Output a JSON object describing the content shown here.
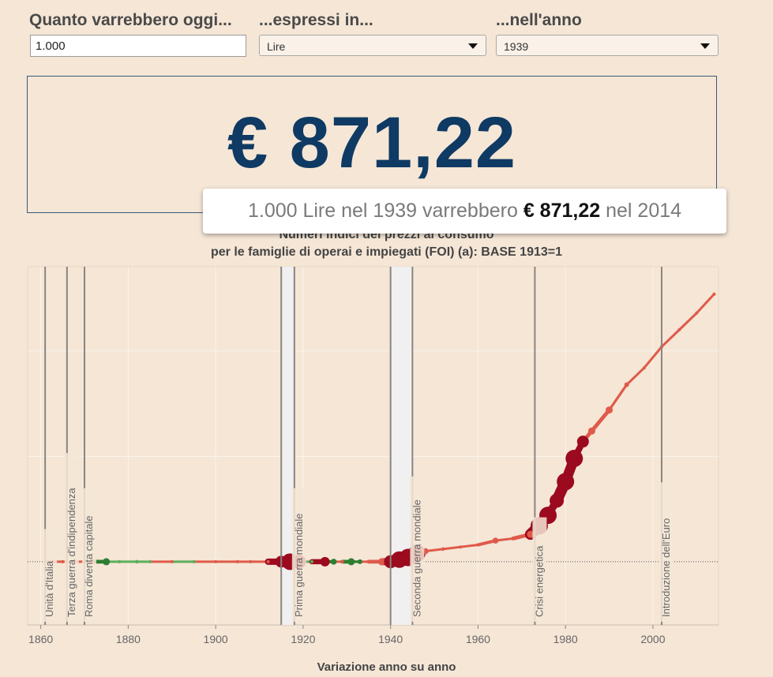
{
  "controls": {
    "amount_label": "Quanto varrebbero oggi...",
    "amount_value": "1.000",
    "currency_label": "...espressi in...",
    "currency_selected": "Lire",
    "year_label": "...nell'anno",
    "year_selected": "1939"
  },
  "result": {
    "value": "€ 871,22"
  },
  "tooltip": {
    "part1": "1.000 Lire nel 1939 varrebbero ",
    "value": "€ 871,22",
    "part2": " nel 2014"
  },
  "chart_data": {
    "type": "line",
    "title": "Numeri indici dei prezzi al consumo",
    "subtitle": "per le famiglie di operai e impiegati (FOI) (a): BASE 1913=1",
    "xlabel": "Variazione anno su anno",
    "xlim": [
      1857,
      2015
    ],
    "x_ticks": [
      1860,
      1880,
      1900,
      1920,
      1940,
      1960,
      1980,
      2000
    ],
    "ylim": [
      -0.3,
      1.4
    ],
    "grid": true,
    "colors": {
      "increase_strong": "#9b0a1e",
      "increase": "#e05a4a",
      "decrease": "#5cae5c",
      "decrease_strong": "#2e7d32",
      "event_band": "#f0f0f0",
      "event_line": "#8a8580"
    },
    "events": [
      {
        "label": "Unità d'Italia",
        "year": 1861
      },
      {
        "label": "Terza guerra d'indipendenza",
        "year": 1866
      },
      {
        "label": "Roma diventa capitale",
        "year": 1870
      },
      {
        "label": "Prima guerra mondiale",
        "start": 1915,
        "end": 1918
      },
      {
        "label": "Seconda guerra mondiale",
        "start": 1940,
        "end": 1945
      },
      {
        "label": "Crisi energetica",
        "year": 1973
      },
      {
        "label": "Introduzione dell'Euro",
        "year": 2002
      }
    ],
    "series": [
      {
        "points": [
          {
            "x": 1861,
            "y": 0.0,
            "change": -0.5
          },
          {
            "x": 1865,
            "y": 0.0,
            "change": 0.5
          },
          {
            "x": 1870,
            "y": 0.0,
            "change": 1.0
          },
          {
            "x": 1872,
            "y": 0.0,
            "change": 2.0
          },
          {
            "x": 1875,
            "y": 0.0,
            "change": -6.0
          },
          {
            "x": 1878,
            "y": 0.0,
            "change": -1.5
          },
          {
            "x": 1882,
            "y": 0.0,
            "change": -3.0
          },
          {
            "x": 1885,
            "y": 0.0,
            "change": -1.5
          },
          {
            "x": 1890,
            "y": 0.0,
            "change": 0.5
          },
          {
            "x": 1895,
            "y": 0.0,
            "change": -1.0
          },
          {
            "x": 1900,
            "y": 0.0,
            "change": 1.0
          },
          {
            "x": 1905,
            "y": 0.0,
            "change": 1.5
          },
          {
            "x": 1908,
            "y": 0.0,
            "change": 2.0
          },
          {
            "x": 1912,
            "y": 0.0,
            "change": 1.0
          },
          {
            "x": 1915,
            "y": 0.0,
            "change": 10.0
          },
          {
            "x": 1917,
            "y": 0.0,
            "change": 14.0
          },
          {
            "x": 1919,
            "y": 0.0,
            "change": 12.0
          },
          {
            "x": 1922,
            "y": 0.0,
            "change": -2.0
          },
          {
            "x": 1925,
            "y": 0.0,
            "change": 8.0
          },
          {
            "x": 1927,
            "y": 0.0,
            "change": -5.0
          },
          {
            "x": 1929,
            "y": 0.0,
            "change": 2.0
          },
          {
            "x": 1931,
            "y": 0.0,
            "change": -6.0
          },
          {
            "x": 1933,
            "y": 0.0,
            "change": -4.0
          },
          {
            "x": 1935,
            "y": 0.0,
            "change": 2.0
          },
          {
            "x": 1938,
            "y": 0.0,
            "change": 6.0
          },
          {
            "x": 1940,
            "y": 0.0,
            "change": 11.0
          },
          {
            "x": 1942,
            "y": 0.01,
            "change": 14.0
          },
          {
            "x": 1944,
            "y": 0.02,
            "change": 18.0
          },
          {
            "x": 1946,
            "y": 0.04,
            "change": 16.0
          },
          {
            "x": 1948,
            "y": 0.05,
            "change": 5.0
          },
          {
            "x": 1952,
            "y": 0.06,
            "change": 3.0
          },
          {
            "x": 1956,
            "y": 0.07,
            "change": 2.5
          },
          {
            "x": 1960,
            "y": 0.08,
            "change": 2.5
          },
          {
            "x": 1964,
            "y": 0.1,
            "change": 5.0
          },
          {
            "x": 1968,
            "y": 0.11,
            "change": 1.5
          },
          {
            "x": 1972,
            "y": 0.13,
            "change": 6.0
          },
          {
            "x": 1974,
            "y": 0.17,
            "change": 19.0
          },
          {
            "x": 1976,
            "y": 0.22,
            "change": 16.0
          },
          {
            "x": 1978,
            "y": 0.29,
            "change": 12.0
          },
          {
            "x": 1980,
            "y": 0.38,
            "change": 21.0
          },
          {
            "x": 1982,
            "y": 0.49,
            "change": 16.0
          },
          {
            "x": 1984,
            "y": 0.57,
            "change": 10.0
          },
          {
            "x": 1986,
            "y": 0.62,
            "change": 6.0
          },
          {
            "x": 1990,
            "y": 0.72,
            "change": 6.0
          },
          {
            "x": 1994,
            "y": 0.84,
            "change": 4.0
          },
          {
            "x": 1998,
            "y": 0.92,
            "change": 2.0
          },
          {
            "x": 2002,
            "y": 1.02,
            "change": 2.5
          },
          {
            "x": 2006,
            "y": 1.1,
            "change": 2.0
          },
          {
            "x": 2010,
            "y": 1.18,
            "change": 1.5
          },
          {
            "x": 2014,
            "y": 1.27,
            "change": 0.2
          }
        ]
      }
    ]
  }
}
